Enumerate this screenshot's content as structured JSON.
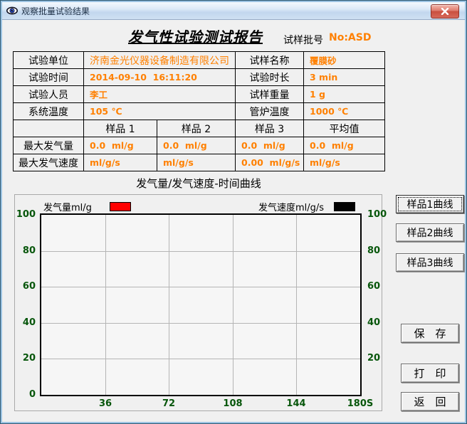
{
  "window": {
    "title": "观察批量试验结果"
  },
  "header": {
    "report_title": "发气性试验测试报告",
    "batch_label": "试样批号",
    "batch_no": "No:ASD"
  },
  "info_table": {
    "rows": [
      {
        "label": "试验单位",
        "value": "济南金光仪器设备制造有限公司",
        "label2": "试样名称",
        "value2": "覆膜砂"
      },
      {
        "label": "试验时间",
        "value": "2014-09-10  16:11:20",
        "label2": "试验时长",
        "value2": "3 min"
      },
      {
        "label": "试验人员",
        "value": "李工",
        "label2": "试样重量",
        "value2": "1 g"
      },
      {
        "label": "系统温度",
        "value": "105 ℃",
        "label2": "管炉温度",
        "value2": "1000 ℃"
      }
    ],
    "sample_headers": [
      "样品 1",
      "样品 2",
      "样品 3",
      "平均值"
    ],
    "max_gas_row": {
      "label": "最大发气量",
      "values": [
        "0.0  ml/g",
        "0.0  ml/g",
        "0.0  ml/g",
        "0.0  ml/g"
      ]
    },
    "max_rate_row": {
      "label": "最大发气速度",
      "values": [
        "ml/g/s",
        "ml/g/s",
        "0.00  ml/g/s",
        "ml/g/s"
      ]
    }
  },
  "chart_caption": "发气量/发气速度-时间曲线",
  "chart_data": {
    "type": "line",
    "title": "发气量/发气速度-时间曲线",
    "legend": [
      {
        "label": "发气量ml/g",
        "color": "#ff0000"
      },
      {
        "label": "发气速度ml/g/s",
        "color": "#000000"
      }
    ],
    "x_ticks": [
      "36",
      "72",
      "108",
      "144",
      "180S"
    ],
    "y_ticks_left": [
      100,
      80,
      60,
      40,
      20,
      0
    ],
    "y_ticks_right": [
      100,
      80,
      60,
      40,
      20
    ],
    "xlim": [
      0,
      180
    ],
    "ylim": [
      0,
      100
    ],
    "grid": true,
    "legend_position": "top",
    "series": [
      {
        "name": "发气量ml/g",
        "values": []
      },
      {
        "name": "发气速度ml/g/s",
        "values": []
      }
    ]
  },
  "side_buttons": [
    {
      "label": "样品1曲线"
    },
    {
      "label": "样品2曲线"
    },
    {
      "label": "样品3曲线"
    }
  ],
  "action_buttons": [
    {
      "label": "保　存"
    },
    {
      "label": "打　印"
    },
    {
      "label": "返　回"
    }
  ],
  "colors": {
    "accent_orange": "#ff8000",
    "axis_green": "#07560b",
    "legend_red": "#ff0000",
    "legend_black": "#000000"
  }
}
